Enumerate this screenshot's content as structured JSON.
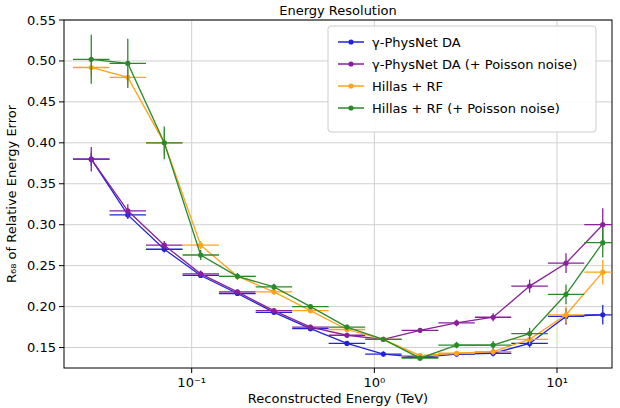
{
  "chart_data": {
    "type": "line",
    "title": "Energy Resolution",
    "x_label": "Reconstructed Energy (TeV)",
    "y_label": "R₆₈ of Relative Energy Error",
    "log": "x",
    "grid": true,
    "legend": "upper right",
    "marker": "circle",
    "xlim": [
      0.02,
      20
    ],
    "ylim": [
      0.125,
      0.55
    ],
    "xticks": [
      {
        "value": 0.1,
        "label": "10⁻¹"
      },
      {
        "value": 1,
        "label": "10⁰"
      },
      {
        "value": 10,
        "label": "10¹"
      }
    ],
    "yticks": [
      {
        "value": 0.15,
        "label": "0.15"
      },
      {
        "value": 0.2,
        "label": "0.20"
      },
      0.25,
      {
        "value": 0.3,
        "label": "0.30"
      },
      0.35,
      {
        "value": 0.4,
        "label": "0.40"
      },
      0.45,
      {
        "value": 0.5,
        "label": "0.50"
      },
      0.55
    ],
    "bins": [
      0.0224,
      0.0355,
      0.0562,
      0.0891,
      0.141,
      0.224,
      0.355,
      0.562,
      0.891,
      1.41,
      2.24,
      3.55,
      5.62,
      8.91,
      14.1,
      22.4
    ],
    "x": [
      0.0282,
      0.0447,
      0.0708,
      0.112,
      0.178,
      0.282,
      0.447,
      0.708,
      1.12,
      1.78,
      2.82,
      4.47,
      7.08,
      11.2,
      17.8
    ],
    "series": [
      {
        "name": "γ-PhysNet DA",
        "color": "#2323d6",
        "values": [
          0.38,
          0.312,
          0.27,
          0.238,
          0.216,
          0.193,
          0.173,
          0.155,
          0.142,
          0.138,
          0.142,
          0.143,
          0.155,
          0.188,
          0.19
        ],
        "errors": [
          0.008,
          0.005,
          0.004,
          0.003,
          0.003,
          0.003,
          0.003,
          0.003,
          0.003,
          0.003,
          0.003,
          0.004,
          0.005,
          0.01,
          0.012
        ]
      },
      {
        "name": "γ-PhysNet DA (+ Poisson noise)",
        "color": "#8a1f9c",
        "values": [
          0.38,
          0.317,
          0.275,
          0.24,
          0.218,
          0.195,
          0.175,
          0.165,
          0.16,
          0.171,
          0.18,
          0.187,
          0.225,
          0.253,
          0.3
        ],
        "errors": [
          0.015,
          0.008,
          0.005,
          0.004,
          0.003,
          0.003,
          0.003,
          0.003,
          0.003,
          0.003,
          0.004,
          0.005,
          0.008,
          0.012,
          0.02
        ]
      },
      {
        "name": "Hillas + RF",
        "color": "#ffa31a",
        "values": [
          0.492,
          0.48,
          0.4,
          0.275,
          0.237,
          0.218,
          0.195,
          0.172,
          0.16,
          0.14,
          0.143,
          0.145,
          0.16,
          0.19,
          0.242
        ],
        "errors": [
          0.01,
          0.01,
          0.015,
          0.005,
          0.004,
          0.004,
          0.003,
          0.003,
          0.003,
          0.003,
          0.003,
          0.004,
          0.006,
          0.01,
          0.015
        ]
      },
      {
        "name": "Hillas + RF (+ Poisson noise)",
        "color": "#2a8a2a",
        "values": [
          0.502,
          0.497,
          0.4,
          0.263,
          0.237,
          0.224,
          0.2,
          0.175,
          0.16,
          0.137,
          0.153,
          0.153,
          0.167,
          0.215,
          0.278
        ],
        "errors": [
          0.03,
          0.03,
          0.02,
          0.006,
          0.004,
          0.004,
          0.003,
          0.003,
          0.003,
          0.003,
          0.004,
          0.005,
          0.007,
          0.012,
          0.018
        ]
      }
    ]
  }
}
